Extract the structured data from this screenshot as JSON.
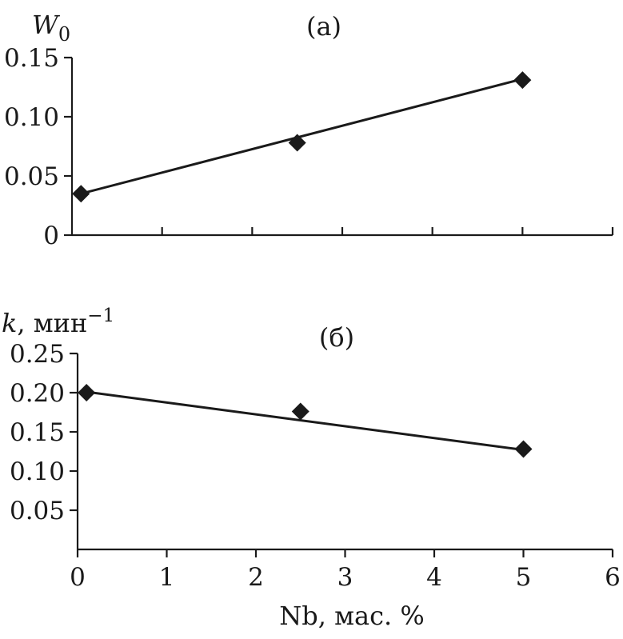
{
  "chart_data": [
    {
      "type": "scatter",
      "panel_label": "(a)",
      "ylabel": {
        "base": "W",
        "sub": "0"
      },
      "xlabel": "",
      "xlim": [
        0,
        6
      ],
      "ylim": [
        0,
        0.15
      ],
      "yticks": [
        0,
        0.05,
        0.1,
        0.15
      ],
      "ytick_labels": [
        "0",
        "0.05",
        "0.10",
        "0.15"
      ],
      "xticks": [
        1,
        2,
        3,
        4,
        5,
        6
      ],
      "xtick_labels": [],
      "grid": false,
      "series": [
        {
          "x": [
            0.1,
            2.5,
            5.0
          ],
          "y": [
            0.035,
            0.078,
            0.131
          ],
          "marker": "diamond",
          "trendline": {
            "x": [
              0.1,
              5.0
            ],
            "y": [
              0.035,
              0.132
            ]
          }
        }
      ]
    },
    {
      "type": "scatter",
      "panel_label": "(б)",
      "ylabel": {
        "base": "k",
        "rest": ", мин",
        "sup": "−1"
      },
      "xlabel": "Nb, мас. %",
      "xlim": [
        0,
        6
      ],
      "ylim": [
        0,
        0.25
      ],
      "yticks": [
        0.05,
        0.1,
        0.15,
        0.2,
        0.25
      ],
      "ytick_labels": [
        "0.05",
        "0.10",
        "0.15",
        "0.20",
        "0.25"
      ],
      "xticks": [
        0,
        1,
        2,
        3,
        4,
        5,
        6
      ],
      "xtick_labels": [
        "0",
        "1",
        "2",
        "3",
        "4",
        "5",
        "6"
      ],
      "grid": false,
      "series": [
        {
          "x": [
            0.1,
            2.5,
            5.0
          ],
          "y": [
            0.2,
            0.176,
            0.128
          ],
          "marker": "diamond",
          "trendline": {
            "x": [
              0.1,
              5.0
            ],
            "y": [
              0.201,
              0.127
            ]
          }
        }
      ]
    }
  ]
}
